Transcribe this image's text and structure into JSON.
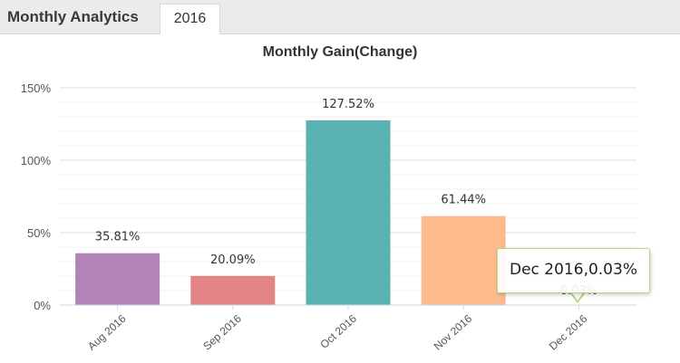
{
  "header": {
    "title": "Monthly Analytics",
    "tab_label": "2016"
  },
  "chart_data": {
    "type": "bar",
    "title": "Monthly Gain(Change)",
    "xlabel": "",
    "ylabel": "",
    "categories": [
      "Aug 2016",
      "Sep 2016",
      "Oct 2016",
      "Nov 2016",
      "Dec 2016"
    ],
    "values": [
      35.81,
      20.09,
      127.52,
      61.44,
      0.03
    ],
    "data_labels": [
      "35.81%",
      "20.09%",
      "127.52%",
      "61.44%",
      "0.03%"
    ],
    "colors": [
      "#b283b4",
      "#e58485",
      "#5ab3b3",
      "#fdba8d",
      "#b9d47e"
    ],
    "ylim": [
      0,
      150
    ],
    "yticks": [
      0,
      50,
      100,
      150
    ],
    "ytick_labels": [
      "0%",
      "50%",
      "100%",
      "150%"
    ],
    "grid": true,
    "legend": "none"
  },
  "tooltip": {
    "text": "Dec 2016,0.03%"
  }
}
